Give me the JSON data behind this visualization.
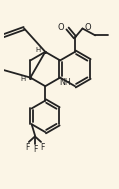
{
  "bg": "#fbf5e6",
  "lc": "#222222",
  "lw": 1.3,
  "figsize": [
    1.19,
    1.89
  ],
  "dpi": 100,
  "xlim": [
    0,
    10
  ],
  "ylim": [
    0,
    16.8
  ]
}
